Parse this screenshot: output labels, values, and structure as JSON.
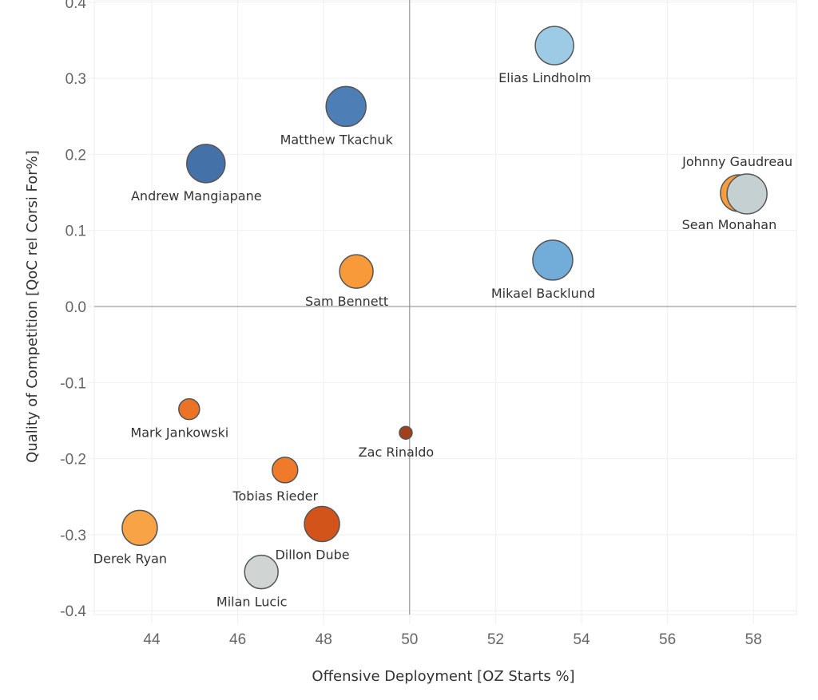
{
  "chart_data": {
    "type": "scatter",
    "title": "",
    "xlabel": "Offensive Deployment [OZ Starts %]",
    "ylabel": "Quality of Competition [QoC rel Corsi For%]",
    "xlim": [
      42.66,
      59.0
    ],
    "ylim": [
      -0.4,
      0.4
    ],
    "xticks": [
      "44",
      "46",
      "48",
      "50",
      "52",
      "54",
      "56",
      "58"
    ],
    "yticks": [
      "0.4",
      "0.3",
      "0.2",
      "0.1",
      "0.0",
      "-0.1",
      "-0.2",
      "-0.3",
      "-0.4"
    ],
    "grid": true,
    "reference_lines": {
      "x": 50,
      "y": 0
    },
    "points": [
      {
        "label": "Elias Lindholm",
        "x": 53.37,
        "y": 0.343,
        "size": 24,
        "color": "#9dcbe6"
      },
      {
        "label": "Matthew Tkachuk",
        "x": 48.52,
        "y": 0.263,
        "size": 25,
        "color": "#4d7eb5"
      },
      {
        "label": "Andrew Mangiapane",
        "x": 45.26,
        "y": 0.188,
        "size": 24,
        "color": "#4471a8"
      },
      {
        "label": "Sean Monahan",
        "x": 57.66,
        "y": 0.149,
        "size": 23,
        "color": "#f89c3c"
      },
      {
        "label": "Johnny Gaudreau",
        "x": 57.85,
        "y": 0.148,
        "size": 25,
        "color": "#c5d0d3"
      },
      {
        "label": "Mikael Backlund",
        "x": 53.33,
        "y": 0.061,
        "size": 25,
        "color": "#72acd8"
      },
      {
        "label": "Sam Bennett",
        "x": 48.76,
        "y": 0.046,
        "size": 21,
        "color": "#f8993a"
      },
      {
        "label": "Mark Jankowski",
        "x": 44.87,
        "y": -0.135,
        "size": 13,
        "color": "#eb7326"
      },
      {
        "label": "Zac Rinaldo",
        "x": 49.91,
        "y": -0.166,
        "size": 8,
        "color": "#a1401b"
      },
      {
        "label": "Tobias Rieder",
        "x": 47.1,
        "y": -0.215,
        "size": 16,
        "color": "#ef7a2a"
      },
      {
        "label": "Derek Ryan",
        "x": 43.72,
        "y": -0.291,
        "size": 22,
        "color": "#f9a347"
      },
      {
        "label": "Dillon Dube",
        "x": 47.96,
        "y": -0.286,
        "size": 22,
        "color": "#d3541b"
      },
      {
        "label": "Milan Lucic",
        "x": 46.55,
        "y": -0.349,
        "size": 21,
        "color": "#d0d5d3"
      }
    ]
  }
}
